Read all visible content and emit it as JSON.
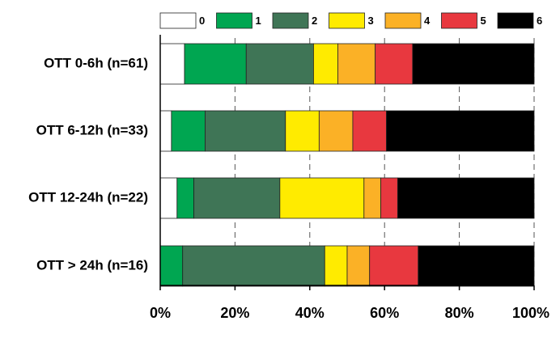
{
  "chart_data": {
    "type": "bar",
    "orientation": "horizontal",
    "stacked": true,
    "categories": [
      "OTT 0-6h (n=61)",
      "OTT 6-12h (n=33)",
      "OTT 12-24h (n=22)",
      "OTT > 24h (n=16)"
    ],
    "series": [
      {
        "name": "0",
        "color": "#ffffff",
        "values": [
          6.5,
          3,
          4.5,
          0
        ]
      },
      {
        "name": "1",
        "color": "#00a651",
        "values": [
          16.5,
          9,
          4.5,
          6
        ]
      },
      {
        "name": "2",
        "color": "#3f7556",
        "values": [
          18,
          21.5,
          23,
          38
        ]
      },
      {
        "name": "3",
        "color": "#ffeb00",
        "values": [
          6.5,
          9,
          22.5,
          6
        ]
      },
      {
        "name": "4",
        "color": "#fbb126",
        "values": [
          10,
          9,
          4.5,
          6
        ]
      },
      {
        "name": "5",
        "color": "#e8383f",
        "values": [
          10,
          9,
          4.5,
          13
        ]
      },
      {
        "name": "6",
        "color": "#000000",
        "values": [
          32.5,
          39.5,
          36.5,
          31
        ]
      }
    ],
    "x_ticks": [
      "0%",
      "20%",
      "40%",
      "60%",
      "80%",
      "100%"
    ],
    "xlim": [
      0,
      100
    ],
    "grid": "vertical dashed",
    "legend": "top"
  }
}
